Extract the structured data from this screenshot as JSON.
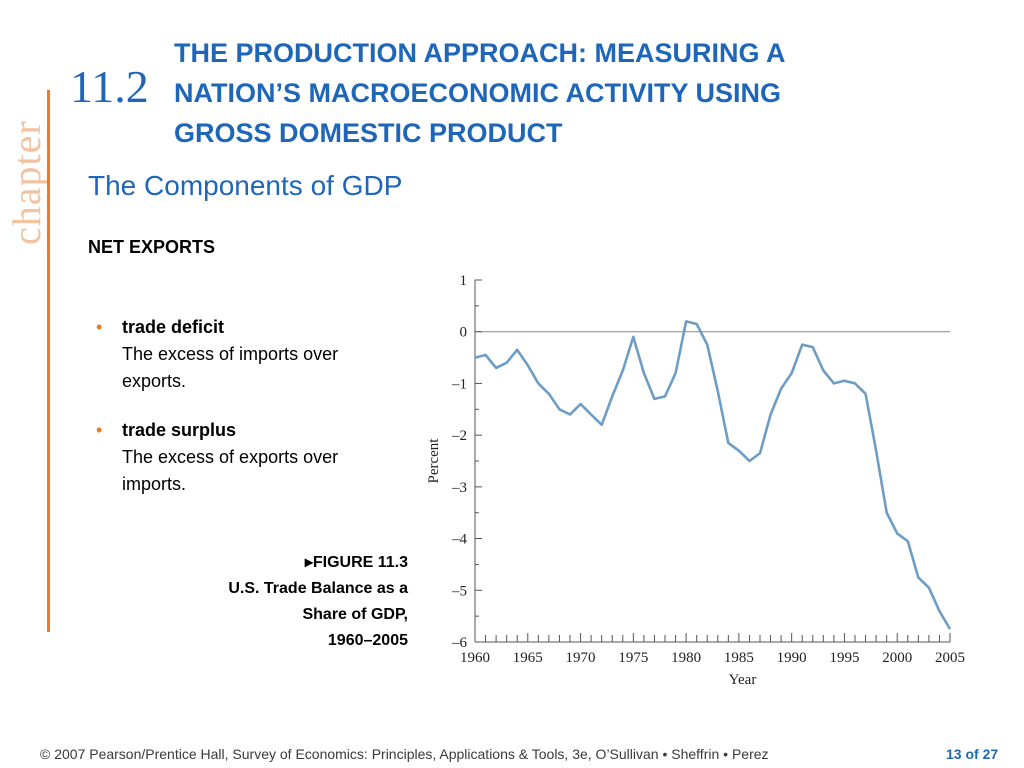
{
  "slide": {
    "chapter_word": "chapter",
    "section_number": "11.2",
    "title_lines": [
      "THE PRODUCTION APPROACH: MEASURING A",
      "NATION’S MACROECONOMIC ACTIVITY USING",
      "GROSS DOMESTIC PRODUCT"
    ],
    "subtitle": "The Components of GDP",
    "section_heading": "NET EXPORTS",
    "bullets": [
      {
        "term": "trade deficit",
        "definition": "The excess of imports over exports."
      },
      {
        "term": "trade surplus",
        "definition": "The excess of exports over imports."
      }
    ],
    "figure_caption": {
      "arrow": "▸",
      "label": "FIGURE 11.3",
      "line1": "U.S. Trade Balance as a",
      "line2": "Share of GDP,",
      "line3": "1960–2005"
    },
    "footer": "© 2007 Pearson/Prentice Hall, Survey of Economics: Principles, Applications & Tools, 3e, O’Sullivan • Sheffrin • Perez",
    "page": "13 of 27"
  },
  "colors": {
    "accent_blue": "#1e66b8",
    "accent_orange": "#e87b2c",
    "series_line": "#6d9dc5",
    "zero_line": "#888888"
  },
  "chart_data": {
    "type": "line",
    "title": "",
    "xlabel": "Year",
    "ylabel": "Percent",
    "xlim": [
      1960,
      2005
    ],
    "ylim": [
      -6,
      1
    ],
    "x_ticks": [
      1960,
      1965,
      1970,
      1975,
      1980,
      1985,
      1990,
      1995,
      2000,
      2005
    ],
    "x_tick_labels": [
      "1960",
      "1965",
      "1970",
      "1975",
      "1980",
      "1985",
      "1990",
      "1995",
      "2000",
      "2005"
    ],
    "y_ticks": [
      1,
      0,
      -1,
      -2,
      -3,
      -4,
      -5,
      -6
    ],
    "y_tick_labels": [
      "1",
      "0",
      "–1",
      "–2",
      "–3",
      "–4",
      "–5",
      "–6"
    ],
    "reference_line": 0,
    "grid": false,
    "series": [
      {
        "x": [
          1960,
          1961,
          1962,
          1963,
          1964,
          1965,
          1966,
          1967,
          1968,
          1969,
          1970,
          1971,
          1972,
          1973,
          1974,
          1975,
          1976,
          1977,
          1978,
          1979,
          1980,
          1981,
          1982,
          1983,
          1984,
          1985,
          1986,
          1987,
          1988,
          1989,
          1990,
          1991,
          1992,
          1993,
          1994,
          1995,
          1996,
          1997,
          1998,
          1999,
          2000,
          2001,
          2002,
          2003,
          2004,
          2005
        ],
        "values": [
          -0.5,
          -0.45,
          -0.7,
          -0.6,
          -0.35,
          -0.65,
          -1.0,
          -1.2,
          -1.5,
          -1.6,
          -1.4,
          -1.6,
          -1.8,
          -1.25,
          -0.75,
          -0.1,
          -0.8,
          -1.3,
          -1.25,
          -0.8,
          0.2,
          0.15,
          -0.25,
          -1.15,
          -2.15,
          -2.3,
          -2.5,
          -2.35,
          -1.6,
          -1.1,
          -0.8,
          -0.25,
          -0.3,
          -0.75,
          -1.0,
          -0.95,
          -1.0,
          -1.2,
          -2.3,
          -3.5,
          -3.9,
          -4.05,
          -4.75,
          -4.95,
          -5.4,
          -5.75
        ]
      }
    ]
  }
}
